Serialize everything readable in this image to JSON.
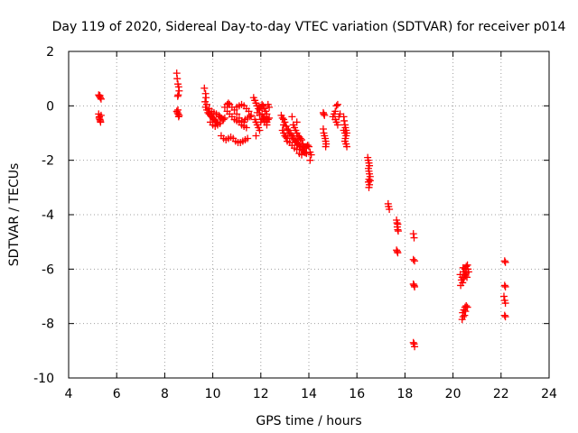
{
  "chart_data": {
    "type": "scatter",
    "title": "Day 119 of 2020, Sidereal Day-to-day VTEC variation (SDTVAR) for receiver p014",
    "xlabel": "GPS time / hours",
    "ylabel": "SDTVAR / TECUs",
    "xlim": [
      4,
      24
    ],
    "ylim": [
      -10,
      2
    ],
    "x_ticks": [
      4,
      6,
      8,
      10,
      12,
      14,
      16,
      18,
      20,
      22,
      24
    ],
    "y_ticks": [
      -10,
      -8,
      -6,
      -4,
      -2,
      0,
      2
    ],
    "x_tick_labels": [
      "4",
      "6",
      "8",
      "10",
      "12",
      "14",
      "16",
      "18",
      "20",
      "22",
      "24"
    ],
    "y_tick_labels": [
      "-10",
      "-8",
      "-6",
      "-4",
      "-2",
      "0",
      "2"
    ],
    "grid": true,
    "marker": "+",
    "series": [
      {
        "name": "SDTVAR",
        "color": "#ff0000",
        "points": [
          [
            5.25,
            0.4
          ],
          [
            5.28,
            0.35
          ],
          [
            5.32,
            0.3
          ],
          [
            5.35,
            0.25
          ],
          [
            5.3,
            0.38
          ],
          [
            5.25,
            -0.3
          ],
          [
            5.28,
            -0.4
          ],
          [
            5.3,
            -0.5
          ],
          [
            5.32,
            -0.55
          ],
          [
            5.35,
            -0.35
          ],
          [
            5.27,
            -0.45
          ],
          [
            5.33,
            -0.6
          ],
          [
            8.5,
            1.2
          ],
          [
            8.52,
            1.0
          ],
          [
            8.55,
            0.8
          ],
          [
            8.58,
            0.7
          ],
          [
            8.6,
            0.55
          ],
          [
            8.56,
            0.4
          ],
          [
            8.54,
            0.35
          ],
          [
            8.5,
            -0.2
          ],
          [
            8.53,
            -0.25
          ],
          [
            8.56,
            -0.3
          ],
          [
            8.6,
            -0.35
          ],
          [
            8.58,
            -0.4
          ],
          [
            8.55,
            -0.15
          ],
          [
            9.65,
            0.65
          ],
          [
            9.7,
            0.45
          ],
          [
            9.72,
            0.3
          ],
          [
            9.68,
            0.15
          ],
          [
            9.7,
            -0.05
          ],
          [
            9.75,
            -0.15
          ],
          [
            9.8,
            -0.25
          ],
          [
            9.85,
            -0.3
          ],
          [
            9.9,
            -0.35
          ],
          [
            9.95,
            -0.4
          ],
          [
            10.0,
            -0.45
          ],
          [
            10.05,
            -0.5
          ],
          [
            10.1,
            -0.55
          ],
          [
            10.15,
            -0.6
          ],
          [
            10.2,
            -0.62
          ],
          [
            9.75,
            0.05
          ],
          [
            9.85,
            -0.1
          ],
          [
            9.95,
            -0.2
          ],
          [
            10.05,
            -0.25
          ],
          [
            10.15,
            -0.3
          ],
          [
            10.25,
            -0.35
          ],
          [
            10.3,
            -0.4
          ],
          [
            10.35,
            -0.45
          ],
          [
            10.4,
            -0.5
          ],
          [
            10.45,
            -0.5
          ],
          [
            10.5,
            -0.45
          ],
          [
            9.9,
            -0.6
          ],
          [
            10.0,
            -0.7
          ],
          [
            10.1,
            -0.75
          ],
          [
            10.2,
            -0.7
          ],
          [
            10.3,
            -0.65
          ],
          [
            10.35,
            -1.1
          ],
          [
            10.45,
            -1.2
          ],
          [
            10.55,
            -1.25
          ],
          [
            10.65,
            -1.2
          ],
          [
            10.75,
            -1.15
          ],
          [
            10.85,
            -1.2
          ],
          [
            10.95,
            -1.3
          ],
          [
            11.05,
            -1.35
          ],
          [
            11.15,
            -1.35
          ],
          [
            11.25,
            -1.3
          ],
          [
            11.35,
            -1.25
          ],
          [
            11.45,
            -1.2
          ],
          [
            10.5,
            -0.05
          ],
          [
            10.6,
            0.05
          ],
          [
            10.65,
            0.1
          ],
          [
            10.7,
            0.05
          ],
          [
            10.8,
            -0.05
          ],
          [
            10.9,
            -0.15
          ],
          [
            11.0,
            -0.3
          ],
          [
            11.1,
            -0.45
          ],
          [
            11.2,
            -0.55
          ],
          [
            11.3,
            -0.6
          ],
          [
            10.6,
            -0.2
          ],
          [
            10.7,
            -0.3
          ],
          [
            10.8,
            -0.4
          ],
          [
            10.9,
            -0.5
          ],
          [
            11.0,
            -0.55
          ],
          [
            11.1,
            -0.6
          ],
          [
            11.2,
            -0.7
          ],
          [
            11.3,
            -0.75
          ],
          [
            11.4,
            -0.8
          ],
          [
            11.0,
            -0.05
          ],
          [
            11.1,
            0.0
          ],
          [
            11.2,
            0.05
          ],
          [
            11.3,
            0.0
          ],
          [
            11.4,
            -0.1
          ],
          [
            11.5,
            -0.2
          ],
          [
            11.35,
            -0.5
          ],
          [
            11.45,
            -0.45
          ],
          [
            11.55,
            -0.4
          ],
          [
            11.6,
            -0.35
          ],
          [
            11.7,
            0.3
          ],
          [
            11.75,
            0.2
          ],
          [
            11.8,
            0.1
          ],
          [
            11.85,
            0.0
          ],
          [
            11.9,
            -0.1
          ],
          [
            11.95,
            -0.15
          ],
          [
            12.0,
            -0.05
          ],
          [
            12.05,
            0.05
          ],
          [
            12.1,
            0.0
          ],
          [
            12.15,
            -0.1
          ],
          [
            12.2,
            -0.2
          ],
          [
            12.25,
            -0.3
          ],
          [
            11.75,
            -0.5
          ],
          [
            11.8,
            -0.6
          ],
          [
            11.85,
            -0.7
          ],
          [
            11.9,
            -0.8
          ],
          [
            11.95,
            -0.9
          ],
          [
            11.8,
            -1.1
          ],
          [
            12.0,
            -0.6
          ],
          [
            12.05,
            -0.5
          ],
          [
            12.1,
            -0.45
          ],
          [
            12.15,
            -0.4
          ],
          [
            12.2,
            -0.5
          ],
          [
            12.25,
            -0.6
          ],
          [
            12.3,
            -0.5
          ],
          [
            12.35,
            -0.45
          ],
          [
            12.3,
            0.05
          ],
          [
            12.35,
            -0.05
          ],
          [
            11.85,
            -0.25
          ],
          [
            11.95,
            -0.35
          ],
          [
            12.05,
            -0.3
          ],
          [
            12.15,
            -0.6
          ],
          [
            12.25,
            -0.7
          ],
          [
            12.85,
            -0.35
          ],
          [
            12.9,
            -0.45
          ],
          [
            12.95,
            -0.5
          ],
          [
            13.0,
            -0.6
          ],
          [
            13.05,
            -0.75
          ],
          [
            13.1,
            -0.85
          ],
          [
            13.15,
            -0.9
          ],
          [
            13.2,
            -1.0
          ],
          [
            13.25,
            -1.05
          ],
          [
            13.3,
            -1.1
          ],
          [
            13.35,
            -1.2
          ],
          [
            13.4,
            -1.25
          ],
          [
            13.45,
            -1.3
          ],
          [
            13.5,
            -1.35
          ],
          [
            13.55,
            -1.4
          ],
          [
            13.6,
            -1.45
          ],
          [
            13.65,
            -1.5
          ],
          [
            13.7,
            -1.6
          ],
          [
            13.75,
            -1.65
          ],
          [
            13.8,
            -1.7
          ],
          [
            13.85,
            -1.72
          ],
          [
            13.9,
            -1.75
          ],
          [
            12.9,
            -0.9
          ],
          [
            12.95,
            -1.0
          ],
          [
            13.0,
            -1.1
          ],
          [
            13.05,
            -1.15
          ],
          [
            13.1,
            -1.2
          ],
          [
            13.2,
            -1.35
          ],
          [
            13.3,
            -1.45
          ],
          [
            13.4,
            -1.55
          ],
          [
            13.5,
            -1.6
          ],
          [
            13.6,
            -1.75
          ],
          [
            13.7,
            -1.8
          ],
          [
            13.35,
            -0.7
          ],
          [
            13.4,
            -0.8
          ],
          [
            13.45,
            -0.9
          ],
          [
            13.5,
            -1.0
          ],
          [
            13.55,
            -1.1
          ],
          [
            13.6,
            -1.15
          ],
          [
            13.65,
            -1.2
          ],
          [
            13.7,
            -1.25
          ],
          [
            13.75,
            -1.4
          ],
          [
            13.8,
            -1.5
          ],
          [
            13.85,
            -1.55
          ],
          [
            13.9,
            -1.5
          ],
          [
            13.95,
            -1.45
          ],
          [
            14.0,
            -1.5
          ],
          [
            14.05,
            -1.7
          ],
          [
            14.1,
            -1.8
          ],
          [
            14.05,
            -2.0
          ],
          [
            13.3,
            -0.4
          ],
          [
            13.5,
            -0.6
          ],
          [
            12.95,
            -0.7
          ],
          [
            13.1,
            -1.3
          ],
          [
            14.6,
            -0.25
          ],
          [
            14.62,
            -0.3
          ],
          [
            14.65,
            -0.35
          ],
          [
            14.6,
            -0.85
          ],
          [
            14.62,
            -1.0
          ],
          [
            14.65,
            -1.1
          ],
          [
            14.68,
            -1.2
          ],
          [
            14.7,
            -1.3
          ],
          [
            14.72,
            -1.4
          ],
          [
            14.7,
            -1.5
          ],
          [
            15.0,
            -0.4
          ],
          [
            15.05,
            -0.3
          ],
          [
            15.1,
            -0.2
          ],
          [
            15.15,
            0.0
          ],
          [
            15.2,
            0.05
          ],
          [
            15.1,
            -0.5
          ],
          [
            15.15,
            -0.6
          ],
          [
            15.2,
            -0.7
          ],
          [
            15.25,
            -0.4
          ],
          [
            15.3,
            -0.3
          ],
          [
            15.45,
            -0.4
          ],
          [
            15.47,
            -0.55
          ],
          [
            15.5,
            -0.7
          ],
          [
            15.52,
            -0.8
          ],
          [
            15.55,
            -0.9
          ],
          [
            15.58,
            -1.0
          ],
          [
            15.55,
            -1.1
          ],
          [
            15.52,
            -1.2
          ],
          [
            15.5,
            -1.3
          ],
          [
            15.55,
            -1.4
          ],
          [
            15.58,
            -1.5
          ],
          [
            15.45,
            -0.9
          ],
          [
            15.5,
            -1.0
          ],
          [
            16.45,
            -1.9
          ],
          [
            16.47,
            -2.0
          ],
          [
            16.5,
            -2.1
          ],
          [
            16.52,
            -2.2
          ],
          [
            16.48,
            -2.3
          ],
          [
            16.5,
            -2.4
          ],
          [
            16.52,
            -2.5
          ],
          [
            16.55,
            -2.6
          ],
          [
            16.5,
            -2.7
          ],
          [
            16.48,
            -2.8
          ],
          [
            16.52,
            -2.9
          ],
          [
            16.5,
            -3.0
          ],
          [
            16.55,
            -2.75
          ],
          [
            17.3,
            -3.6
          ],
          [
            17.32,
            -3.7
          ],
          [
            17.35,
            -3.8
          ],
          [
            17.65,
            -4.2
          ],
          [
            17.67,
            -4.3
          ],
          [
            17.68,
            -4.45
          ],
          [
            17.7,
            -4.55
          ],
          [
            17.72,
            -4.6
          ],
          [
            17.7,
            -4.35
          ],
          [
            17.65,
            -5.3
          ],
          [
            17.68,
            -5.35
          ],
          [
            17.7,
            -5.4
          ],
          [
            18.35,
            -4.7
          ],
          [
            18.38,
            -4.85
          ],
          [
            18.35,
            -5.65
          ],
          [
            18.4,
            -5.7
          ],
          [
            18.35,
            -6.55
          ],
          [
            18.38,
            -6.6
          ],
          [
            18.4,
            -6.65
          ],
          [
            18.35,
            -8.7
          ],
          [
            18.38,
            -8.75
          ],
          [
            18.4,
            -8.85
          ],
          [
            20.3,
            -6.2
          ],
          [
            20.35,
            -6.4
          ],
          [
            20.4,
            -6.5
          ],
          [
            20.32,
            -6.6
          ],
          [
            20.38,
            -6.3
          ],
          [
            20.45,
            -6.1
          ],
          [
            20.5,
            -6.0
          ],
          [
            20.55,
            -5.9
          ],
          [
            20.6,
            -5.85
          ],
          [
            20.62,
            -6.0
          ],
          [
            20.65,
            -6.1
          ],
          [
            20.42,
            -5.95
          ],
          [
            20.48,
            -6.2
          ],
          [
            20.52,
            -6.25
          ],
          [
            20.58,
            -6.3
          ],
          [
            20.55,
            -6.15
          ],
          [
            20.45,
            -6.35
          ],
          [
            20.4,
            -7.6
          ],
          [
            20.42,
            -7.75
          ],
          [
            20.45,
            -7.5
          ],
          [
            20.48,
            -7.7
          ],
          [
            20.5,
            -7.4
          ],
          [
            20.55,
            -7.35
          ],
          [
            20.6,
            -7.4
          ],
          [
            20.38,
            -7.85
          ],
          [
            20.52,
            -7.55
          ],
          [
            22.15,
            -5.7
          ],
          [
            22.18,
            -5.75
          ],
          [
            22.15,
            -6.6
          ],
          [
            22.18,
            -6.65
          ],
          [
            22.12,
            -7.0
          ],
          [
            22.15,
            -7.15
          ],
          [
            22.18,
            -7.25
          ],
          [
            22.15,
            -7.7
          ],
          [
            22.18,
            -7.75
          ]
        ]
      }
    ]
  }
}
